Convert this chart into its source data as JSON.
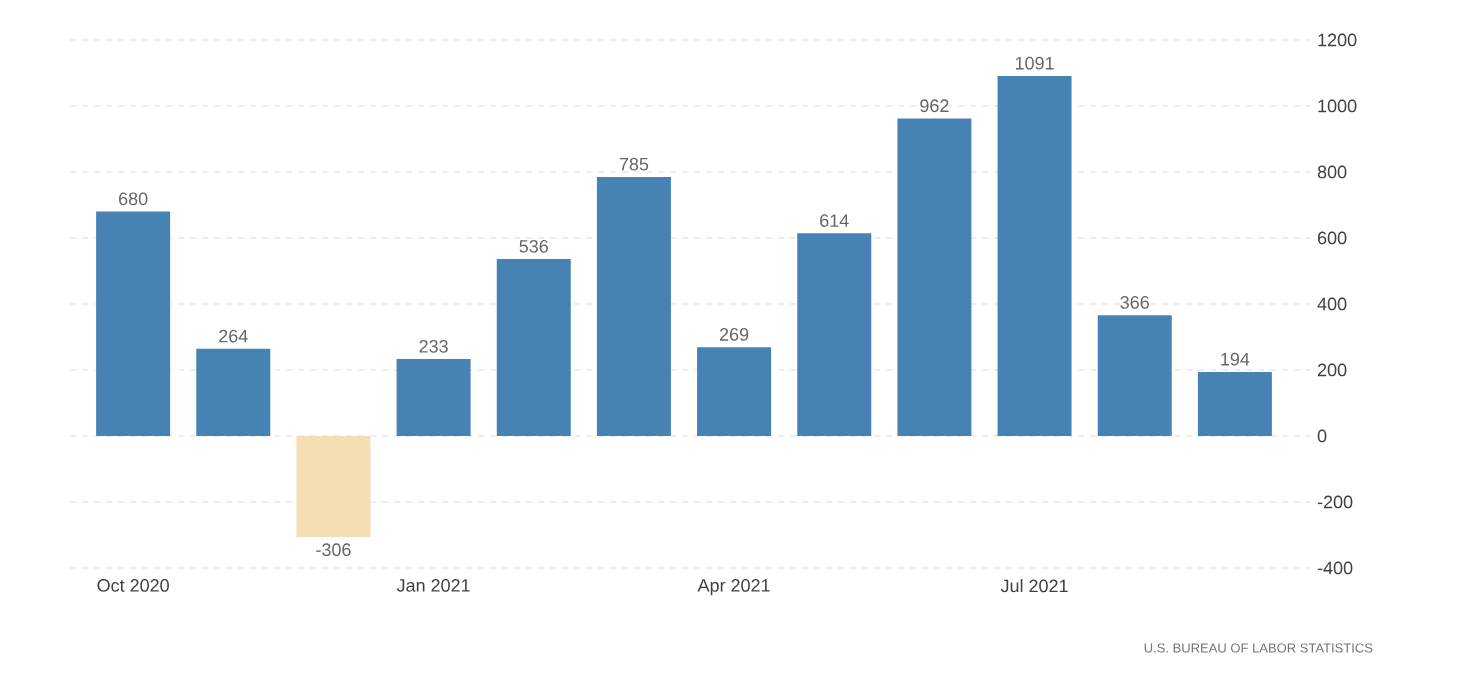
{
  "chart_data": {
    "type": "bar",
    "categories": [
      "Oct 2020",
      null,
      null,
      "Jan 2021",
      null,
      null,
      "Apr 2021",
      null,
      null,
      "Jul 2021",
      null,
      null
    ],
    "values": [
      680,
      264,
      -306,
      233,
      536,
      785,
      269,
      614,
      962,
      1091,
      366,
      194
    ],
    "colors": [
      "#4682b4",
      "#4682b4",
      "#f5deb3",
      "#4682b4",
      "#4682b4",
      "#4682b4",
      "#4682b4",
      "#4682b4",
      "#4682b4",
      "#4682b4",
      "#4682b4",
      "#4682b4"
    ],
    "ylim": [
      -400,
      1200
    ],
    "yticks": [
      -400,
      -200,
      0,
      200,
      400,
      600,
      800,
      1000,
      1200
    ],
    "grid": "y",
    "data_labels": true,
    "annotations": [
      "U.S. BUREAU OF LABOR STATISTICS"
    ]
  }
}
